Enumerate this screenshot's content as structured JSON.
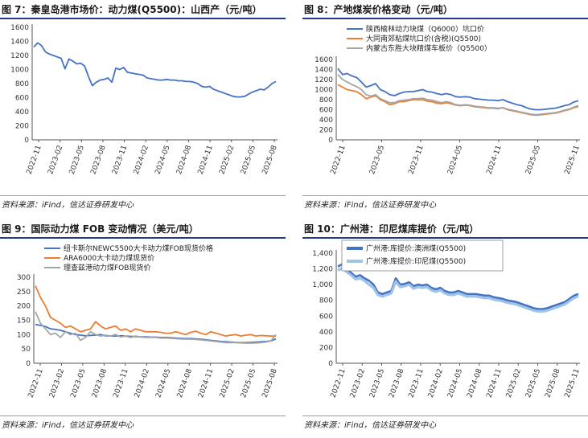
{
  "panels": [
    {
      "title": "图 7：秦皇岛港市场价：动力煤(Q5500)：山西产（元/吨）",
      "source": "资料来源：iFind，信达证券研发中心"
    },
    {
      "title": "图 8：产地煤炭价格变动（元/吨）",
      "source": "资料来源：iFind，信达证券研发中心"
    },
    {
      "title": "图 9：国际动力煤 FOB 变动情况（美元/吨）",
      "source": "资料来源：iFind，信达证券研发中心"
    },
    {
      "title": "图 10：广州港：印尼煤库提价（元/吨）",
      "source": "资料来源：iFind，信达证券研发中心"
    }
  ],
  "chart_data": [
    {
      "type": "line",
      "title": "图 7：秦皇岛港市场价：动力煤(Q5500)：山西产（元/吨）",
      "x_ticks": [
        "2022-11",
        "2023-02",
        "2023-05",
        "2023-08",
        "2023-11",
        "2024-02",
        "2024-05",
        "2024-08",
        "2024-11",
        "2025-02",
        "2025-05",
        "2025-08"
      ],
      "ylim": [
        0,
        1600
      ],
      "y_ticks": [
        0,
        200,
        400,
        600,
        800,
        1000,
        1200,
        1400,
        1600
      ],
      "grid": false,
      "legend": "none",
      "series": [
        {
          "color": "#4472c4",
          "values": [
            1320,
            1380,
            1340,
            1250,
            1220,
            1200,
            1180,
            1160,
            1010,
            1150,
            1120,
            1080,
            1090,
            1050,
            900,
            770,
            820,
            850,
            860,
            880,
            820,
            1020,
            1000,
            1030,
            960,
            950,
            940,
            930,
            920,
            880,
            870,
            860,
            850,
            850,
            860,
            850,
            850,
            840,
            840,
            830,
            830,
            820,
            800,
            760,
            750,
            760,
            720,
            700,
            680,
            660,
            640,
            620,
            610,
            610,
            620,
            650,
            680,
            700,
            720,
            710,
            750,
            800,
            830
          ]
        }
      ]
    },
    {
      "type": "line",
      "title": "图 8：产地煤炭价格变动（元/吨）",
      "x_ticks": [
        "2022-11",
        "2023-05",
        "2023-11",
        "2024-05",
        "2024-11",
        "2025-05",
        "2025-11"
      ],
      "ylim": [
        0,
        1600
      ],
      "y_ticks": [
        0,
        200,
        400,
        600,
        800,
        1000,
        1200,
        1400,
        1600
      ],
      "grid": false,
      "legend": "top-left",
      "series": [
        {
          "name": "陕西榆林动力块煤（Q6000）坑口价",
          "color": "#4472c4",
          "values": [
            1420,
            1300,
            1320,
            1270,
            1240,
            1150,
            1050,
            1080,
            1120,
            1000,
            960,
            900,
            880,
            920,
            950,
            960,
            960,
            980,
            1000,
            960,
            950,
            920,
            900,
            920,
            900,
            860,
            850,
            860,
            850,
            820,
            810,
            800,
            790,
            790,
            780,
            800,
            760,
            730,
            700,
            680,
            640,
            610,
            600,
            600,
            610,
            620,
            630,
            650,
            680,
            700,
            750,
            780
          ]
        },
        {
          "name": "大同南郊粘煤坑口价(含税)(Q5500)",
          "color": "#ed7d31",
          "values": [
            1100,
            1050,
            1000,
            980,
            960,
            900,
            820,
            850,
            880,
            800,
            760,
            700,
            720,
            760,
            760,
            780,
            800,
            800,
            800,
            770,
            760,
            730,
            720,
            740,
            720,
            690,
            680,
            690,
            680,
            660,
            650,
            640,
            630,
            630,
            620,
            640,
            600,
            580,
            560,
            540,
            520,
            500,
            490,
            500,
            510,
            520,
            530,
            550,
            580,
            600,
            640,
            660
          ]
        },
        {
          "name": "内蒙古东胜大块精煤车板价（Q5500）",
          "color": "#a5a5a5",
          "values": [
            1300,
            1200,
            1150,
            1100,
            1060,
            1000,
            900,
            870,
            900,
            820,
            780,
            740,
            740,
            780,
            790,
            800,
            820,
            820,
            830,
            800,
            790,
            760,
            740,
            760,
            740,
            700,
            690,
            700,
            690,
            670,
            660,
            650,
            640,
            640,
            630,
            640,
            610,
            590,
            570,
            550,
            530,
            510,
            500,
            510,
            520,
            530,
            540,
            560,
            590,
            610,
            650,
            680
          ]
        }
      ]
    },
    {
      "type": "line",
      "title": "图 9：国际动力煤 FOB 变动情况（美元/吨）",
      "x_ticks": [
        "2022-11",
        "2023-02",
        "2023-05",
        "2023-08",
        "2023-11",
        "2024-02",
        "2024-05",
        "2024-08",
        "2024-11",
        "2025-02",
        "2025-05",
        "2025-08"
      ],
      "ylim": [
        0,
        300
      ],
      "y_ticks": [
        0,
        50,
        100,
        150,
        200,
        250,
        300
      ],
      "grid": false,
      "legend": "top-left",
      "series": [
        {
          "name": "纽卡斯尔NEWC5500大卡动力煤FOB现货价格",
          "color": "#4472c4",
          "values": [
            135,
            132,
            128,
            120,
            118,
            115,
            110,
            105,
            100,
            98,
            96,
            97,
            98,
            100,
            96,
            95,
            95,
            96,
            95,
            94,
            93,
            92,
            92,
            91,
            91,
            90,
            90,
            89,
            88,
            87,
            86,
            86,
            85,
            84,
            82,
            80,
            78,
            76,
            75,
            74,
            73,
            72,
            72,
            73,
            74,
            75,
            76,
            78,
            85
          ]
        },
        {
          "name": "ARA6000大卡动力煤现货价",
          "color": "#ed7d31",
          "values": [
            270,
            230,
            200,
            160,
            150,
            140,
            125,
            130,
            120,
            110,
            115,
            120,
            145,
            130,
            120,
            125,
            130,
            115,
            120,
            110,
            120,
            115,
            110,
            110,
            110,
            108,
            105,
            105,
            110,
            105,
            100,
            108,
            112,
            105,
            100,
            110,
            105,
            100,
            95,
            98,
            100,
            95,
            98,
            100,
            95,
            97,
            96,
            95,
            95
          ]
        },
        {
          "name": "理查兹港动力煤FOB现货价",
          "color": "#a5a5a5",
          "values": [
            180,
            140,
            120,
            100,
            105,
            90,
            110,
            100,
            105,
            80,
            90,
            110,
            100,
            95,
            98,
            95,
            100,
            92,
            95,
            90,
            95,
            92,
            90,
            90,
            90,
            88,
            88,
            87,
            86,
            85,
            84,
            84,
            83,
            82,
            80,
            78,
            76,
            74,
            72,
            72,
            72,
            71,
            70,
            70,
            71,
            72,
            74,
            78,
            100
          ]
        }
      ]
    },
    {
      "type": "line",
      "title": "图 10：广州港：印尼煤库提价（元/吨）",
      "x_ticks": [
        "2022-11",
        "2023-02",
        "2023-05",
        "2023-08",
        "2023-11",
        "2024-02",
        "2024-05",
        "2024-08",
        "2024-11",
        "2025-02",
        "2025-05",
        "2025-08",
        "2025-11"
      ],
      "ylim": [
        0,
        1400
      ],
      "y_ticks": [
        0,
        200,
        400,
        600,
        800,
        1000,
        1200,
        1400
      ],
      "grid": false,
      "legend": "top-left",
      "series": [
        {
          "name": "广州港:库提价:澳洲煤(Q5500)",
          "color": "#4472c4",
          "values": [
            1230,
            1260,
            1200,
            1150,
            1100,
            1120,
            1080,
            1050,
            1000,
            900,
            880,
            900,
            920,
            1080,
            1000,
            1010,
            1030,
            980,
            1000,
            990,
            1000,
            960,
            940,
            960,
            920,
            900,
            900,
            920,
            900,
            880,
            880,
            880,
            870,
            860,
            860,
            840,
            830,
            820,
            800,
            790,
            780,
            760,
            740,
            720,
            700,
            690,
            690,
            700,
            720,
            740,
            760,
            780,
            820,
            860,
            880
          ]
        },
        {
          "name": "广州港:库提价:印尼煤(Q5500)",
          "color": "#9dc3e6",
          "values": [
            1180,
            1210,
            1160,
            1120,
            1070,
            1080,
            1050,
            1000,
            960,
            870,
            850,
            870,
            890,
            1040,
            970,
            980,
            1000,
            950,
            970,
            960,
            970,
            930,
            910,
            930,
            890,
            870,
            870,
            890,
            870,
            850,
            850,
            850,
            840,
            830,
            830,
            810,
            800,
            790,
            770,
            760,
            750,
            730,
            710,
            690,
            670,
            660,
            660,
            670,
            690,
            710,
            730,
            750,
            790,
            830,
            850
          ]
        }
      ]
    }
  ]
}
